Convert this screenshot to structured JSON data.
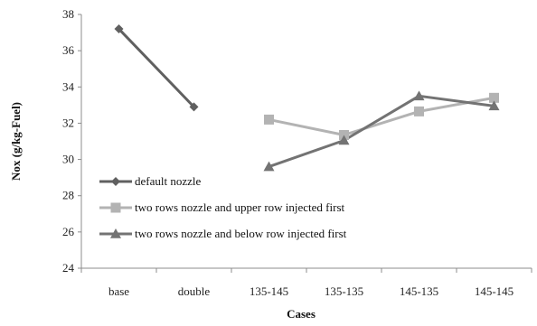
{
  "chart_data": {
    "type": "line",
    "categories": [
      "base",
      "double",
      "135-145",
      "135-135",
      "145-135",
      "145-145"
    ],
    "xlabel": "Cases",
    "ylabel": "Nox (g/kg-Fuel)",
    "ylim": [
      24,
      38
    ],
    "yticks": [
      24,
      26,
      28,
      30,
      32,
      34,
      36,
      38
    ],
    "grid": false,
    "legend_position": "bottom-left",
    "series": [
      {
        "name": "default nozzle",
        "marker": "diamond",
        "color": "#606060",
        "values": [
          37.2,
          32.9,
          null,
          null,
          null,
          null
        ]
      },
      {
        "name": "two rows  nozzle and upper row injected first",
        "marker": "square",
        "color": "#b3b3b3",
        "values": [
          null,
          null,
          32.2,
          31.35,
          32.65,
          33.4
        ]
      },
      {
        "name": "two rows  nozzle and below row injected first",
        "marker": "triangle",
        "color": "#737373",
        "values": [
          null,
          null,
          29.6,
          31.05,
          33.5,
          32.95
        ]
      }
    ]
  }
}
